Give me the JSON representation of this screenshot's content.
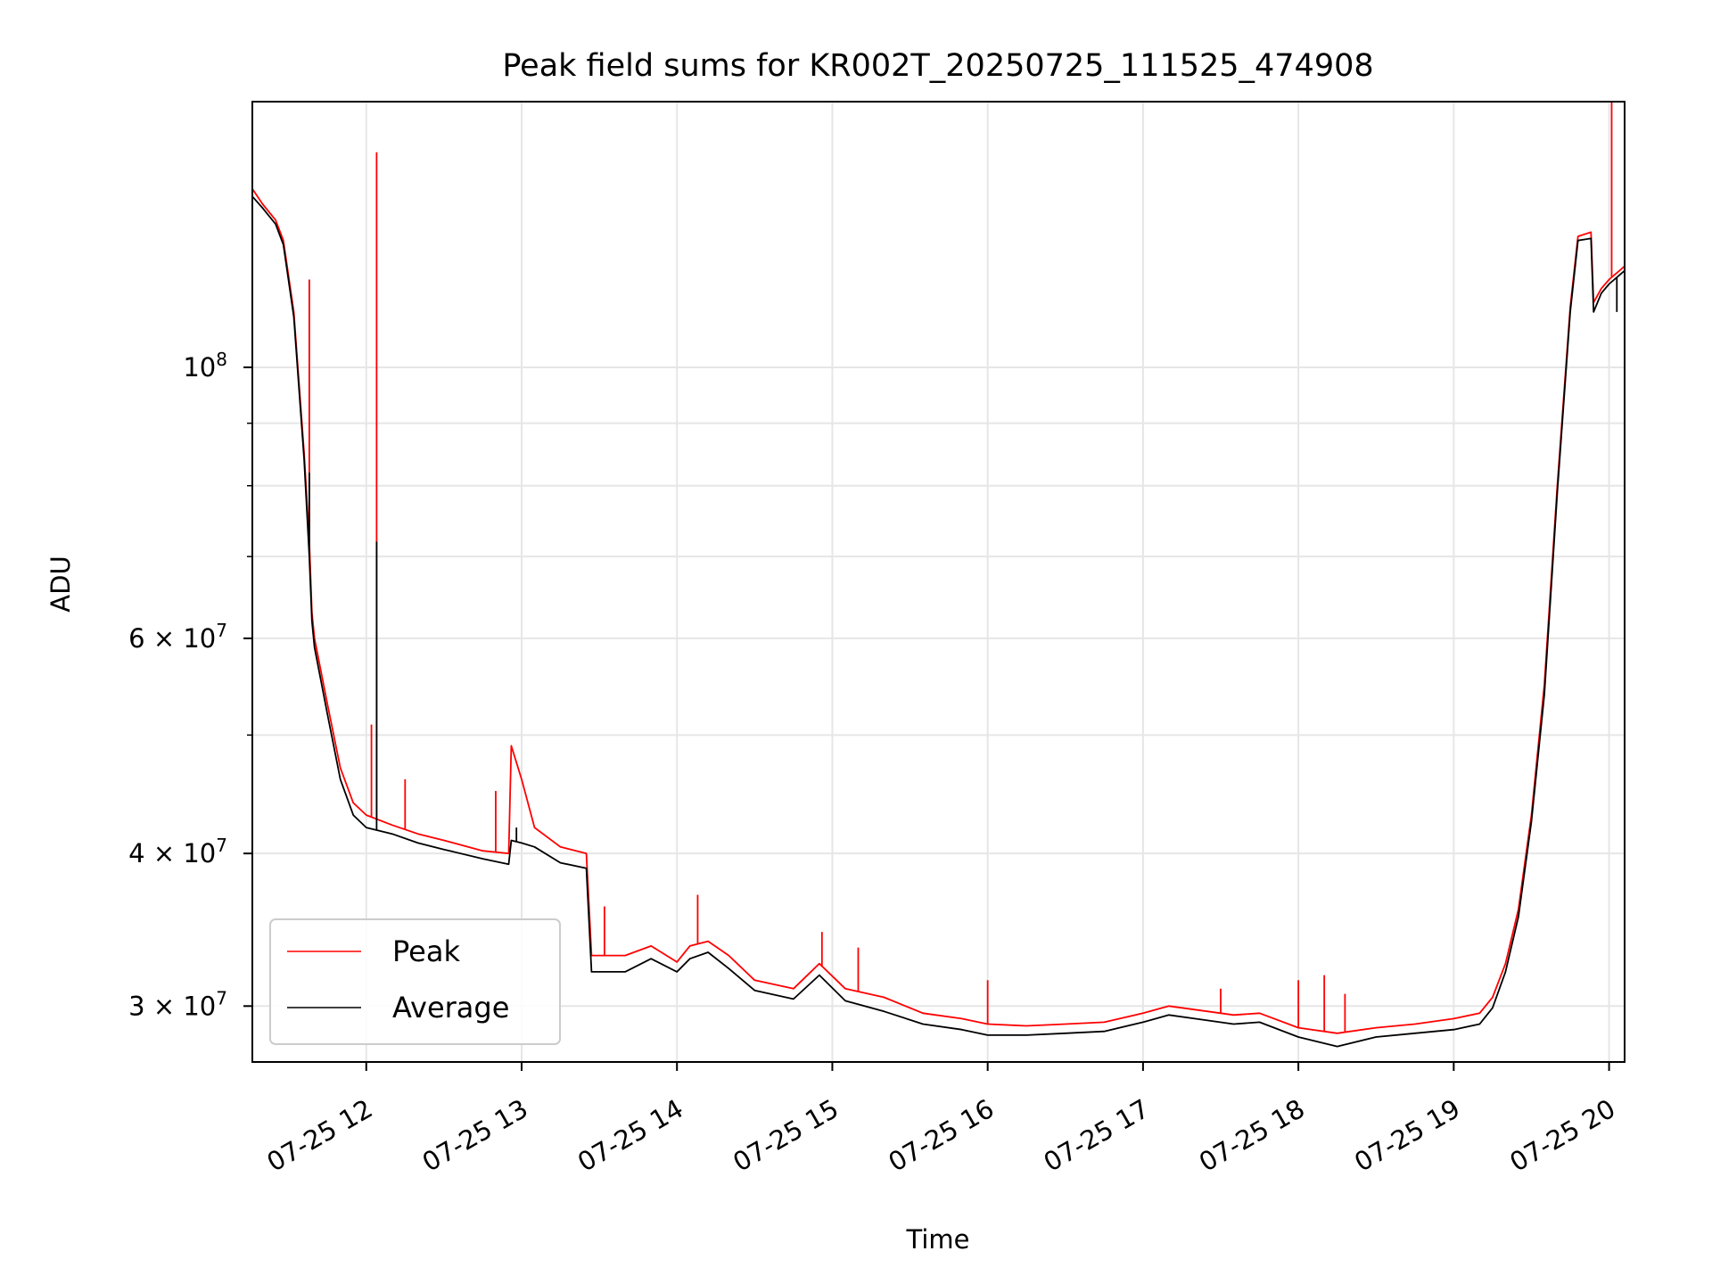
{
  "chart_data": {
    "type": "line",
    "title": "Peak field sums for KR002T_20250725_111525_474908",
    "xlabel": "Time",
    "ylabel": "ADU",
    "x_type": "datetime",
    "y_scale": "log",
    "xlim": [
      "2025-07-25 11:16",
      "2025-07-25 20:06"
    ],
    "ylim": [
      27000000,
      165000000
    ],
    "x_ticks": [
      {
        "value": "2025-07-25 12:00",
        "label": "07-25 12"
      },
      {
        "value": "2025-07-25 13:00",
        "label": "07-25 13"
      },
      {
        "value": "2025-07-25 14:00",
        "label": "07-25 14"
      },
      {
        "value": "2025-07-25 15:00",
        "label": "07-25 15"
      },
      {
        "value": "2025-07-25 16:00",
        "label": "07-25 16"
      },
      {
        "value": "2025-07-25 17:00",
        "label": "07-25 17"
      },
      {
        "value": "2025-07-25 18:00",
        "label": "07-25 18"
      },
      {
        "value": "2025-07-25 19:00",
        "label": "07-25 19"
      },
      {
        "value": "2025-07-25 20:00",
        "label": "07-25 20"
      }
    ],
    "y_ticks_major": [
      {
        "value": 30000000,
        "base": "3",
        "exp": "7"
      },
      {
        "value": 40000000,
        "base": "4",
        "exp": "7"
      },
      {
        "value": 60000000,
        "base": "6",
        "exp": "7"
      },
      {
        "value": 100000000,
        "base": "10",
        "exp": "8"
      }
    ],
    "y_ticks_minor": [
      50000000,
      70000000,
      80000000,
      90000000
    ],
    "grid": true,
    "legend_position": "lower-left",
    "series": [
      {
        "name": "Peak",
        "color": "#ff0000",
        "points": [
          [
            "2025-07-25 11:16",
            140000000
          ],
          [
            "2025-07-25 11:20",
            136000000
          ],
          [
            "2025-07-25 11:25",
            132000000
          ],
          [
            "2025-07-25 11:28",
            127000000
          ],
          [
            "2025-07-25 11:32",
            111000000
          ],
          [
            "2025-07-25 11:36",
            85000000
          ],
          [
            "2025-07-25 11:38",
            72000000
          ],
          [
            "2025-07-25 11:39",
            63000000
          ],
          [
            "2025-07-25 11:40",
            60000000
          ],
          [
            "2025-07-25 11:45",
            53000000
          ],
          [
            "2025-07-25 11:50",
            47000000
          ],
          [
            "2025-07-25 11:55",
            44000000
          ],
          [
            "2025-07-25 12:00",
            43000000
          ],
          [
            "2025-07-25 12:10",
            42200000
          ],
          [
            "2025-07-25 12:20",
            41500000
          ],
          [
            "2025-07-25 12:30",
            41000000
          ],
          [
            "2025-07-25 12:45",
            40200000
          ],
          [
            "2025-07-25 12:55",
            40000000
          ],
          [
            "2025-07-25 12:56",
            49000000
          ],
          [
            "2025-07-25 13:00",
            46000000
          ],
          [
            "2025-07-25 13:05",
            42000000
          ],
          [
            "2025-07-25 13:15",
            40500000
          ],
          [
            "2025-07-25 13:25",
            40000000
          ],
          [
            "2025-07-25 13:27",
            33000000
          ],
          [
            "2025-07-25 13:40",
            33000000
          ],
          [
            "2025-07-25 13:50",
            33600000
          ],
          [
            "2025-07-25 14:00",
            32600000
          ],
          [
            "2025-07-25 14:05",
            33600000
          ],
          [
            "2025-07-25 14:12",
            33900000
          ],
          [
            "2025-07-25 14:20",
            33000000
          ],
          [
            "2025-07-25 14:30",
            31500000
          ],
          [
            "2025-07-25 14:45",
            31000000
          ],
          [
            "2025-07-25 14:55",
            32500000
          ],
          [
            "2025-07-25 15:05",
            31000000
          ],
          [
            "2025-07-25 15:20",
            30500000
          ],
          [
            "2025-07-25 15:35",
            29600000
          ],
          [
            "2025-07-25 15:50",
            29300000
          ],
          [
            "2025-07-25 16:00",
            29000000
          ],
          [
            "2025-07-25 16:15",
            28900000
          ],
          [
            "2025-07-25 16:30",
            29000000
          ],
          [
            "2025-07-25 16:45",
            29100000
          ],
          [
            "2025-07-25 17:00",
            29600000
          ],
          [
            "2025-07-25 17:10",
            30000000
          ],
          [
            "2025-07-25 17:20",
            29800000
          ],
          [
            "2025-07-25 17:35",
            29500000
          ],
          [
            "2025-07-25 17:45",
            29600000
          ],
          [
            "2025-07-25 18:00",
            28800000
          ],
          [
            "2025-07-25 18:15",
            28500000
          ],
          [
            "2025-07-25 18:30",
            28800000
          ],
          [
            "2025-07-25 18:45",
            29000000
          ],
          [
            "2025-07-25 19:00",
            29300000
          ],
          [
            "2025-07-25 19:10",
            29600000
          ],
          [
            "2025-07-25 19:15",
            30500000
          ],
          [
            "2025-07-25 19:20",
            32500000
          ],
          [
            "2025-07-25 19:25",
            36000000
          ],
          [
            "2025-07-25 19:30",
            43000000
          ],
          [
            "2025-07-25 19:35",
            55000000
          ],
          [
            "2025-07-25 19:40",
            80000000
          ],
          [
            "2025-07-25 19:45",
            112000000
          ],
          [
            "2025-07-25 19:48",
            128000000
          ],
          [
            "2025-07-25 19:53",
            129000000
          ],
          [
            "2025-07-25 19:54",
            113000000
          ],
          [
            "2025-07-25 19:57",
            116000000
          ],
          [
            "2025-07-25 20:00",
            118000000
          ],
          [
            "2025-07-25 20:06",
            121000000
          ]
        ],
        "spikes": [
          [
            "2025-07-25 11:38",
            118000000
          ],
          [
            "2025-07-25 12:04",
            150000000
          ],
          [
            "2025-07-25 12:02",
            51000000
          ],
          [
            "2025-07-25 12:15",
            46000000
          ],
          [
            "2025-07-25 12:50",
            45000000
          ],
          [
            "2025-07-25 13:32",
            36200000
          ],
          [
            "2025-07-25 14:08",
            37000000
          ],
          [
            "2025-07-25 14:56",
            34500000
          ],
          [
            "2025-07-25 15:10",
            33500000
          ],
          [
            "2025-07-25 16:00",
            31500000
          ],
          [
            "2025-07-25 17:30",
            31000000
          ],
          [
            "2025-07-25 18:00",
            31500000
          ],
          [
            "2025-07-25 18:10",
            31800000
          ],
          [
            "2025-07-25 18:18",
            30700000
          ],
          [
            "2025-07-25 20:01",
            165000000
          ]
        ]
      },
      {
        "name": "Average",
        "color": "#000000",
        "points": [
          [
            "2025-07-25 11:16",
            138000000
          ],
          [
            "2025-07-25 11:20",
            135000000
          ],
          [
            "2025-07-25 11:25",
            131000000
          ],
          [
            "2025-07-25 11:28",
            126000000
          ],
          [
            "2025-07-25 11:32",
            110000000
          ],
          [
            "2025-07-25 11:36",
            84000000
          ],
          [
            "2025-07-25 11:38",
            70000000
          ],
          [
            "2025-07-25 11:39",
            62000000
          ],
          [
            "2025-07-25 11:40",
            59000000
          ],
          [
            "2025-07-25 11:45",
            52000000
          ],
          [
            "2025-07-25 11:50",
            46000000
          ],
          [
            "2025-07-25 11:55",
            43000000
          ],
          [
            "2025-07-25 12:00",
            42000000
          ],
          [
            "2025-07-25 12:10",
            41500000
          ],
          [
            "2025-07-25 12:20",
            40800000
          ],
          [
            "2025-07-25 12:30",
            40300000
          ],
          [
            "2025-07-25 12:45",
            39600000
          ],
          [
            "2025-07-25 12:55",
            39200000
          ],
          [
            "2025-07-25 12:56",
            41000000
          ],
          [
            "2025-07-25 13:00",
            40800000
          ],
          [
            "2025-07-25 13:05",
            40500000
          ],
          [
            "2025-07-25 13:15",
            39300000
          ],
          [
            "2025-07-25 13:25",
            38900000
          ],
          [
            "2025-07-25 13:27",
            32000000
          ],
          [
            "2025-07-25 13:40",
            32000000
          ],
          [
            "2025-07-25 13:50",
            32800000
          ],
          [
            "2025-07-25 14:00",
            32000000
          ],
          [
            "2025-07-25 14:05",
            32800000
          ],
          [
            "2025-07-25 14:12",
            33200000
          ],
          [
            "2025-07-25 14:20",
            32200000
          ],
          [
            "2025-07-25 14:30",
            30900000
          ],
          [
            "2025-07-25 14:45",
            30400000
          ],
          [
            "2025-07-25 14:55",
            31800000
          ],
          [
            "2025-07-25 15:05",
            30300000
          ],
          [
            "2025-07-25 15:20",
            29700000
          ],
          [
            "2025-07-25 15:35",
            29000000
          ],
          [
            "2025-07-25 15:50",
            28700000
          ],
          [
            "2025-07-25 16:00",
            28400000
          ],
          [
            "2025-07-25 16:15",
            28400000
          ],
          [
            "2025-07-25 16:30",
            28500000
          ],
          [
            "2025-07-25 16:45",
            28600000
          ],
          [
            "2025-07-25 17:00",
            29100000
          ],
          [
            "2025-07-25 17:10",
            29500000
          ],
          [
            "2025-07-25 17:20",
            29300000
          ],
          [
            "2025-07-25 17:35",
            29000000
          ],
          [
            "2025-07-25 17:45",
            29100000
          ],
          [
            "2025-07-25 18:00",
            28300000
          ],
          [
            "2025-07-25 18:15",
            27800000
          ],
          [
            "2025-07-25 18:30",
            28300000
          ],
          [
            "2025-07-25 18:45",
            28500000
          ],
          [
            "2025-07-25 19:00",
            28700000
          ],
          [
            "2025-07-25 19:10",
            29000000
          ],
          [
            "2025-07-25 19:15",
            29900000
          ],
          [
            "2025-07-25 19:20",
            32000000
          ],
          [
            "2025-07-25 19:25",
            35500000
          ],
          [
            "2025-07-25 19:30",
            42500000
          ],
          [
            "2025-07-25 19:35",
            54000000
          ],
          [
            "2025-07-25 19:40",
            79000000
          ],
          [
            "2025-07-25 19:45",
            111000000
          ],
          [
            "2025-07-25 19:48",
            127000000
          ],
          [
            "2025-07-25 19:53",
            127500000
          ],
          [
            "2025-07-25 19:54",
            111000000
          ],
          [
            "2025-07-25 19:57",
            115000000
          ],
          [
            "2025-07-25 20:00",
            117000000
          ],
          [
            "2025-07-25 20:06",
            120000000
          ]
        ],
        "spikes": [
          [
            "2025-07-25 11:38",
            82000000
          ],
          [
            "2025-07-25 12:04",
            72000000
          ],
          [
            "2025-07-25 12:58",
            42000000
          ],
          [
            "2025-07-25 20:03",
            111000000
          ]
        ]
      }
    ]
  }
}
